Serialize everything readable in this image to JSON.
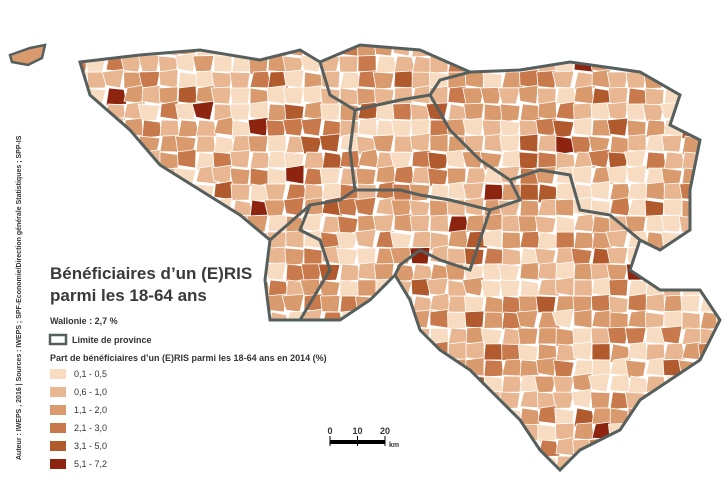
{
  "title_lines": [
    "Bénéficiaires d’un (E)RIS",
    "parmi les 18-64 ans"
  ],
  "summary": "Wallonie : 2,7 %",
  "legend": {
    "boundary": "Limite de province",
    "title": "Part de bénéficiaires d’un (E)RIS parmi les 18-64 ans en 2014 (%)",
    "classes": [
      {
        "label": "0,1 - 0,5",
        "color": "#f7dcc1"
      },
      {
        "label": "0,6 - 1,0",
        "color": "#e8b690"
      },
      {
        "label": "1,1 - 2,0",
        "color": "#d99a6d"
      },
      {
        "label": "2,1 - 3,0",
        "color": "#c97a4c"
      },
      {
        "label": "3,1 - 5,0",
        "color": "#b05a2d"
      },
      {
        "label": "5,1 - 7,2",
        "color": "#8c2410"
      }
    ]
  },
  "scale": {
    "ticks": [
      0,
      10,
      20
    ],
    "unit": "km"
  },
  "credit": "Auteur : IWEPS , 2016 | Sources : IWEPS ; SPF-Economie/Direction générale Statistiques ; SPP-IS"
}
